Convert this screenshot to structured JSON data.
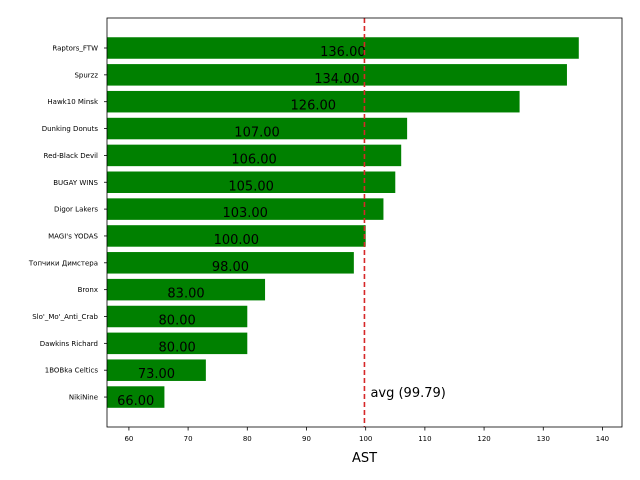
{
  "chart_data": {
    "type": "bar",
    "orientation": "horizontal",
    "categories": [
      "Raptors_FTW",
      "Spurzz",
      "Hawk10 Minsk",
      "Dunking Donuts",
      "Red-Black Devil",
      "BUGAY WINS",
      "Digor Lakers",
      "MAGI's YODAS",
      "Топчики Димстера",
      "Bronx",
      "Slo'_Mo'_Anti_Crab",
      "Dawkins Richard",
      "1BOBka Celtics",
      "NikiNine"
    ],
    "values": [
      136,
      134,
      126,
      107,
      106,
      105,
      103,
      100,
      98,
      83,
      80,
      80,
      73,
      66
    ],
    "value_labels": [
      "136.00",
      "134.00",
      "126.00",
      "107.00",
      "106.00",
      "105.00",
      "103.00",
      "100.00",
      "98.00",
      "83.00",
      "80.00",
      "80.00",
      "73.00",
      "66.00"
    ],
    "title": "",
    "xlabel": "AST",
    "ylabel": "",
    "xlim": [
      56.3,
      143.3
    ],
    "xticks": [
      60,
      70,
      80,
      90,
      100,
      110,
      120,
      130,
      140
    ],
    "bar_color": "#008000",
    "average": {
      "value": 99.79,
      "label": "avg (99.79)",
      "color": "#d62728"
    },
    "grid": false
  }
}
